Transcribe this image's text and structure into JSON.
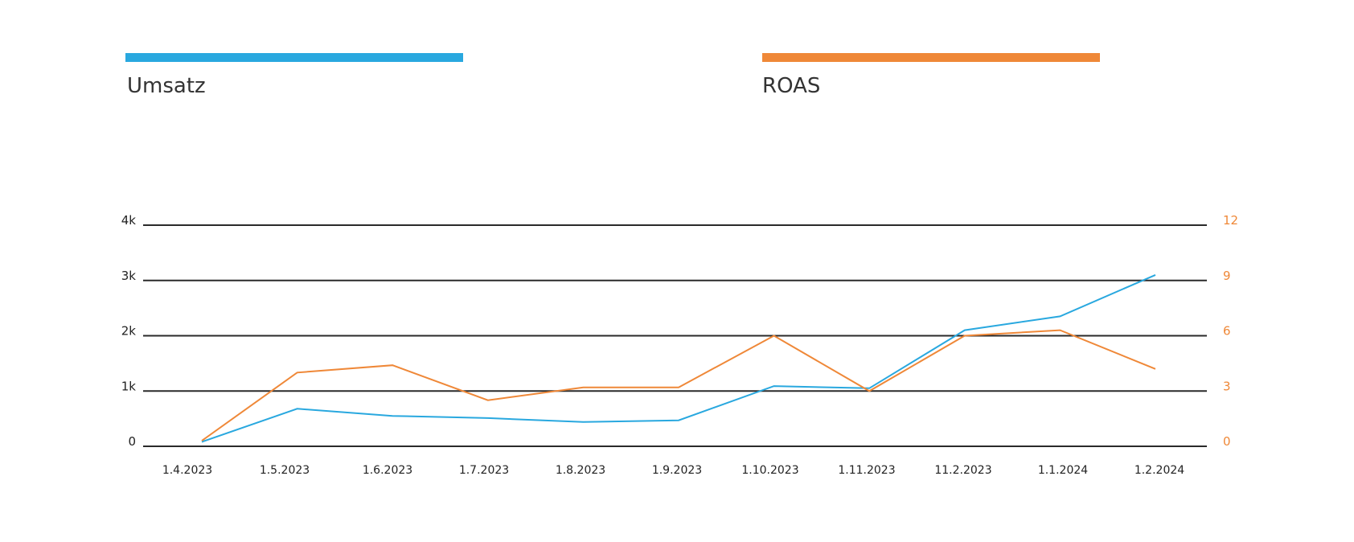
{
  "colors": {
    "umsatz": "#29A8DF",
    "roas": "#EF8838",
    "grid": "#2a2a2a"
  },
  "legend": [
    {
      "label": "Umsatz",
      "color": "#29A8DF"
    },
    {
      "label": "ROAS",
      "color": "#EF8838"
    }
  ],
  "chart_data": {
    "type": "line",
    "title": "",
    "xlabel": "",
    "ylabel": "",
    "legend_position": "top",
    "grid": true,
    "categories": [
      "1.4.2023",
      "1.5.2023",
      "1.6.2023",
      "1.7.2023",
      "1.8.2023",
      "1.9.2023",
      "1.10.2023",
      "1.11.2023",
      "11.2.2023",
      "1.1.2024",
      "1.2.2024"
    ],
    "y_left": {
      "ticks": [
        0,
        1000,
        2000,
        3000,
        4000
      ],
      "tick_labels": [
        "0",
        "1k",
        "2k",
        "3k",
        "4k"
      ],
      "ylim": [
        0,
        4000
      ]
    },
    "y_right": {
      "ticks": [
        0,
        3,
        6,
        9,
        12
      ],
      "tick_labels": [
        "0",
        "3",
        "6",
        "9",
        "12"
      ],
      "ylim": [
        0,
        12
      ]
    },
    "series": [
      {
        "name": "Umsatz",
        "axis": "left",
        "values": [
          80,
          680,
          550,
          510,
          440,
          470,
          1090,
          1050,
          2100,
          2350,
          3100
        ]
      },
      {
        "name": "ROAS",
        "axis": "right",
        "values": [
          0.3,
          4.0,
          4.4,
          2.5,
          3.2,
          3.2,
          6.0,
          3.0,
          6.0,
          6.3,
          4.2
        ]
      }
    ]
  }
}
